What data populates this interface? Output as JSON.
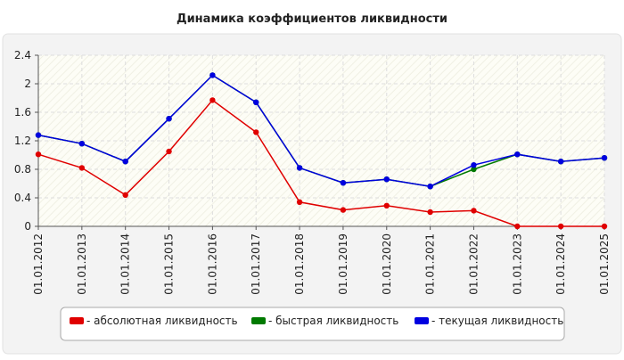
{
  "chart_data": {
    "type": "line",
    "title": "Динамика коэффициентов ликвидности",
    "categories": [
      "01.01.2012",
      "01.01.2013",
      "01.01.2014",
      "01.01.2015",
      "01.01.2016",
      "01.01.2017",
      "01.01.2018",
      "01.01.2019",
      "01.01.2020",
      "01.01.2021",
      "01.01.2022",
      "01.01.2023",
      "01.01.2024",
      "01.01.2025"
    ],
    "series": [
      {
        "name": "- абсолютная ликвидность",
        "color": "#e00000",
        "values": [
          1.01,
          0.82,
          0.44,
          1.05,
          1.77,
          1.32,
          0.34,
          0.23,
          0.29,
          0.2,
          0.22,
          0,
          0,
          0
        ]
      },
      {
        "name": "- быстрая ликвидность",
        "color": "#007a00",
        "values": [
          1.28,
          1.16,
          0.91,
          1.51,
          2.12,
          1.74,
          0.82,
          0.61,
          0.66,
          0.56,
          0.8,
          1.01,
          0.91,
          0.96
        ]
      },
      {
        "name": "- текущая ликвидность",
        "color": "#0000e0",
        "values": [
          1.28,
          1.16,
          0.91,
          1.51,
          2.12,
          1.74,
          0.82,
          0.61,
          0.66,
          0.56,
          0.86,
          1.01,
          0.91,
          0.96
        ]
      }
    ],
    "ylim": [
      0,
      2.4
    ],
    "yticks": [
      0,
      0.4,
      0.8,
      1.2,
      1.6,
      2,
      2.4
    ],
    "grid": true
  }
}
